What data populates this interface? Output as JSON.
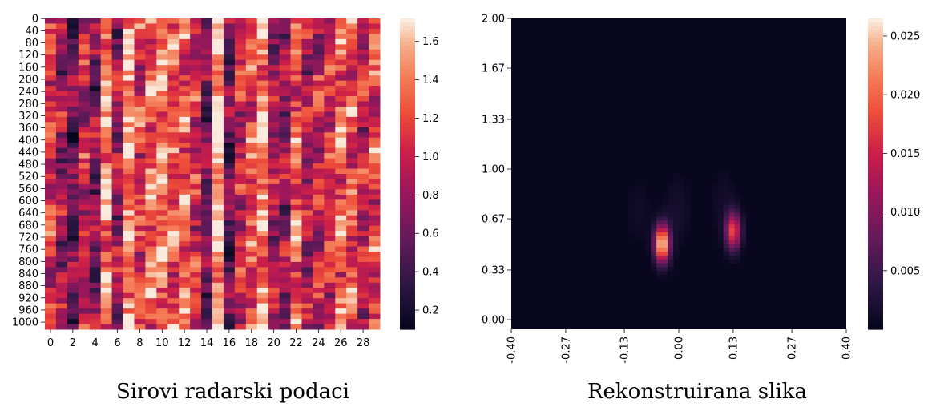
{
  "chart_data": [
    {
      "type": "heatmap",
      "title": "",
      "caption": "Sirovi radarski podaci",
      "xlabel": "",
      "ylabel": "",
      "x_ticks": [
        "0",
        "2",
        "4",
        "6",
        "8",
        "10",
        "12",
        "14",
        "16",
        "18",
        "20",
        "22",
        "24",
        "26",
        "28"
      ],
      "y_ticks": [
        "0",
        "40",
        "80",
        "120",
        "160",
        "200",
        "240",
        "280",
        "320",
        "360",
        "400",
        "440",
        "480",
        "520",
        "560",
        "600",
        "640",
        "680",
        "720",
        "760",
        "800",
        "840",
        "880",
        "920",
        "960",
        "1000"
      ],
      "x_range": [
        0,
        29
      ],
      "y_range": [
        0,
        1023
      ],
      "colorbar": {
        "min": 0.1,
        "max": 1.72,
        "ticks": [
          "0.2",
          "0.4",
          "0.6",
          "0.8",
          "1.0",
          "1.2",
          "1.4",
          "1.6"
        ],
        "tick_values": [
          0.2,
          0.4,
          0.6,
          0.8,
          1.0,
          1.2,
          1.4,
          1.6
        ]
      },
      "colormap": "rocket",
      "column_profile": [
        1.1,
        0.8,
        0.6,
        1.0,
        0.7,
        1.4,
        0.8,
        1.5,
        1.1,
        1.3,
        1.4,
        1.2,
        1.3,
        1.1,
        0.7,
        1.6,
        0.6,
        1.0,
        1.2,
        1.4,
        0.9,
        0.8,
        1.3,
        0.9,
        1.0,
        1.1,
        1.3,
        1.2,
        1.0,
        1.2
      ]
    },
    {
      "type": "heatmap",
      "title": "",
      "caption": "Rekonstruirana slika",
      "xlabel": "",
      "ylabel": "",
      "x_ticks": [
        "-0.40",
        "-0.27",
        "-0.13",
        "0.00",
        "0.13",
        "0.27",
        "0.40"
      ],
      "x_tick_values": [
        -0.4,
        -0.27,
        -0.13,
        0.0,
        0.13,
        0.27,
        0.4
      ],
      "y_ticks": [
        "2.00",
        "1.67",
        "1.33",
        "1.00",
        "0.67",
        "0.33",
        "0.00"
      ],
      "y_tick_values": [
        2.0,
        1.67,
        1.33,
        1.0,
        0.67,
        0.33,
        0.0
      ],
      "x_range": [
        -0.4,
        0.4
      ],
      "y_range": [
        0,
        2
      ],
      "colorbar": {
        "min": 0.0,
        "max": 0.0265,
        "ticks": [
          "0.005",
          "0.010",
          "0.015",
          "0.020",
          "0.025"
        ],
        "tick_values": [
          0.005,
          0.01,
          0.015,
          0.02,
          0.025
        ]
      },
      "colormap": "rocket",
      "hotspots": [
        {
          "x": -0.04,
          "y": 0.55,
          "peak": 0.0265
        },
        {
          "x": 0.13,
          "y": 0.63,
          "peak": 0.018
        }
      ]
    }
  ]
}
